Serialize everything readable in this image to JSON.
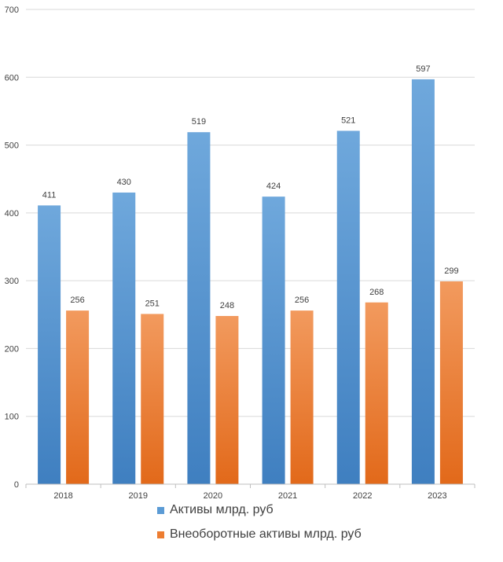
{
  "chart_data": {
    "type": "bar",
    "categories": [
      "2018",
      "2019",
      "2020",
      "2021",
      "2022",
      "2023"
    ],
    "series": [
      {
        "name": "Активы млрд. руб",
        "values": [
          411,
          430,
          519,
          424,
          521,
          597
        ],
        "color": "#5b9bd5"
      },
      {
        "name": "Внеоборотные активы млрд. руб",
        "values": [
          256,
          251,
          248,
          256,
          268,
          299
        ],
        "color": "#ed7d31"
      }
    ],
    "title": "",
    "xlabel": "",
    "ylabel": "",
    "ylim": [
      0,
      700
    ],
    "yticks": [
      "0",
      "100",
      "200",
      "300",
      "400",
      "500",
      "600",
      "700"
    ],
    "grid": true,
    "legend_position": "bottom"
  }
}
